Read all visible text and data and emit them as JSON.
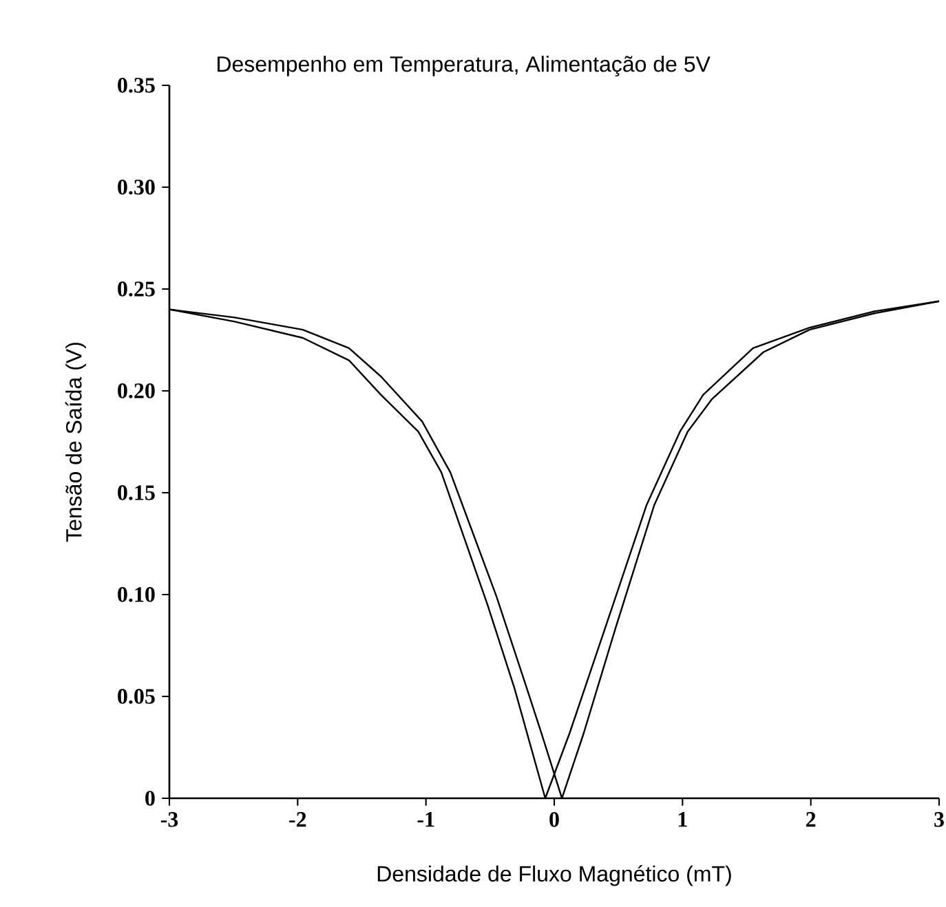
{
  "chart_data": {
    "type": "line",
    "subtitle": "Desempenho em Temperatura, Alimentação de 5V",
    "xlabel": "Densidade de Fluxo Magnético (mT)",
    "ylabel": "Tensão de Saída (V)",
    "xlim": [
      -3,
      3
    ],
    "ylim": [
      0,
      0.35
    ],
    "xticks": [
      -3,
      -2,
      -1,
      0,
      1,
      2,
      3
    ],
    "yticks": [
      0,
      0.05,
      {
        "value": 0.1,
        "label": "0.10"
      },
      0.15,
      {
        "value": 0.2,
        "label": "0.20"
      },
      0.25,
      {
        "value": 0.3,
        "label": "0.30"
      },
      0.35
    ],
    "series": [
      {
        "color": "#000000",
        "x": [
          -3,
          -2.49,
          -1.96,
          -1.6,
          -1.35,
          -1.06,
          -0.88,
          -0.52,
          -0.31,
          -0.07,
          0.12,
          0.41,
          0.72,
          0.98,
          1.16,
          1.55,
          1.99,
          2.49,
          3
        ],
        "values": [
          0.24,
          0.234,
          0.226,
          0.215,
          0.198,
          0.18,
          0.16,
          0.095,
          0.054,
          0,
          0.032,
          0.086,
          0.144,
          0.18,
          0.198,
          0.221,
          0.231,
          0.239,
          0.244
        ]
      },
      {
        "color": "#000000",
        "x": [
          -3,
          -2.49,
          -1.96,
          -1.6,
          -1.35,
          -1.03,
          -0.81,
          -0.45,
          -0.24,
          -0.1,
          0.06,
          0.23,
          0.48,
          0.78,
          1.04,
          1.23,
          1.63,
          1.99,
          2.49,
          3
        ],
        "values": [
          0.24,
          0.236,
          0.23,
          0.221,
          0.207,
          0.185,
          0.16,
          0.099,
          0.059,
          0.032,
          0,
          0.032,
          0.084,
          0.144,
          0.18,
          0.196,
          0.219,
          0.23,
          0.238,
          0.244
        ]
      }
    ]
  }
}
